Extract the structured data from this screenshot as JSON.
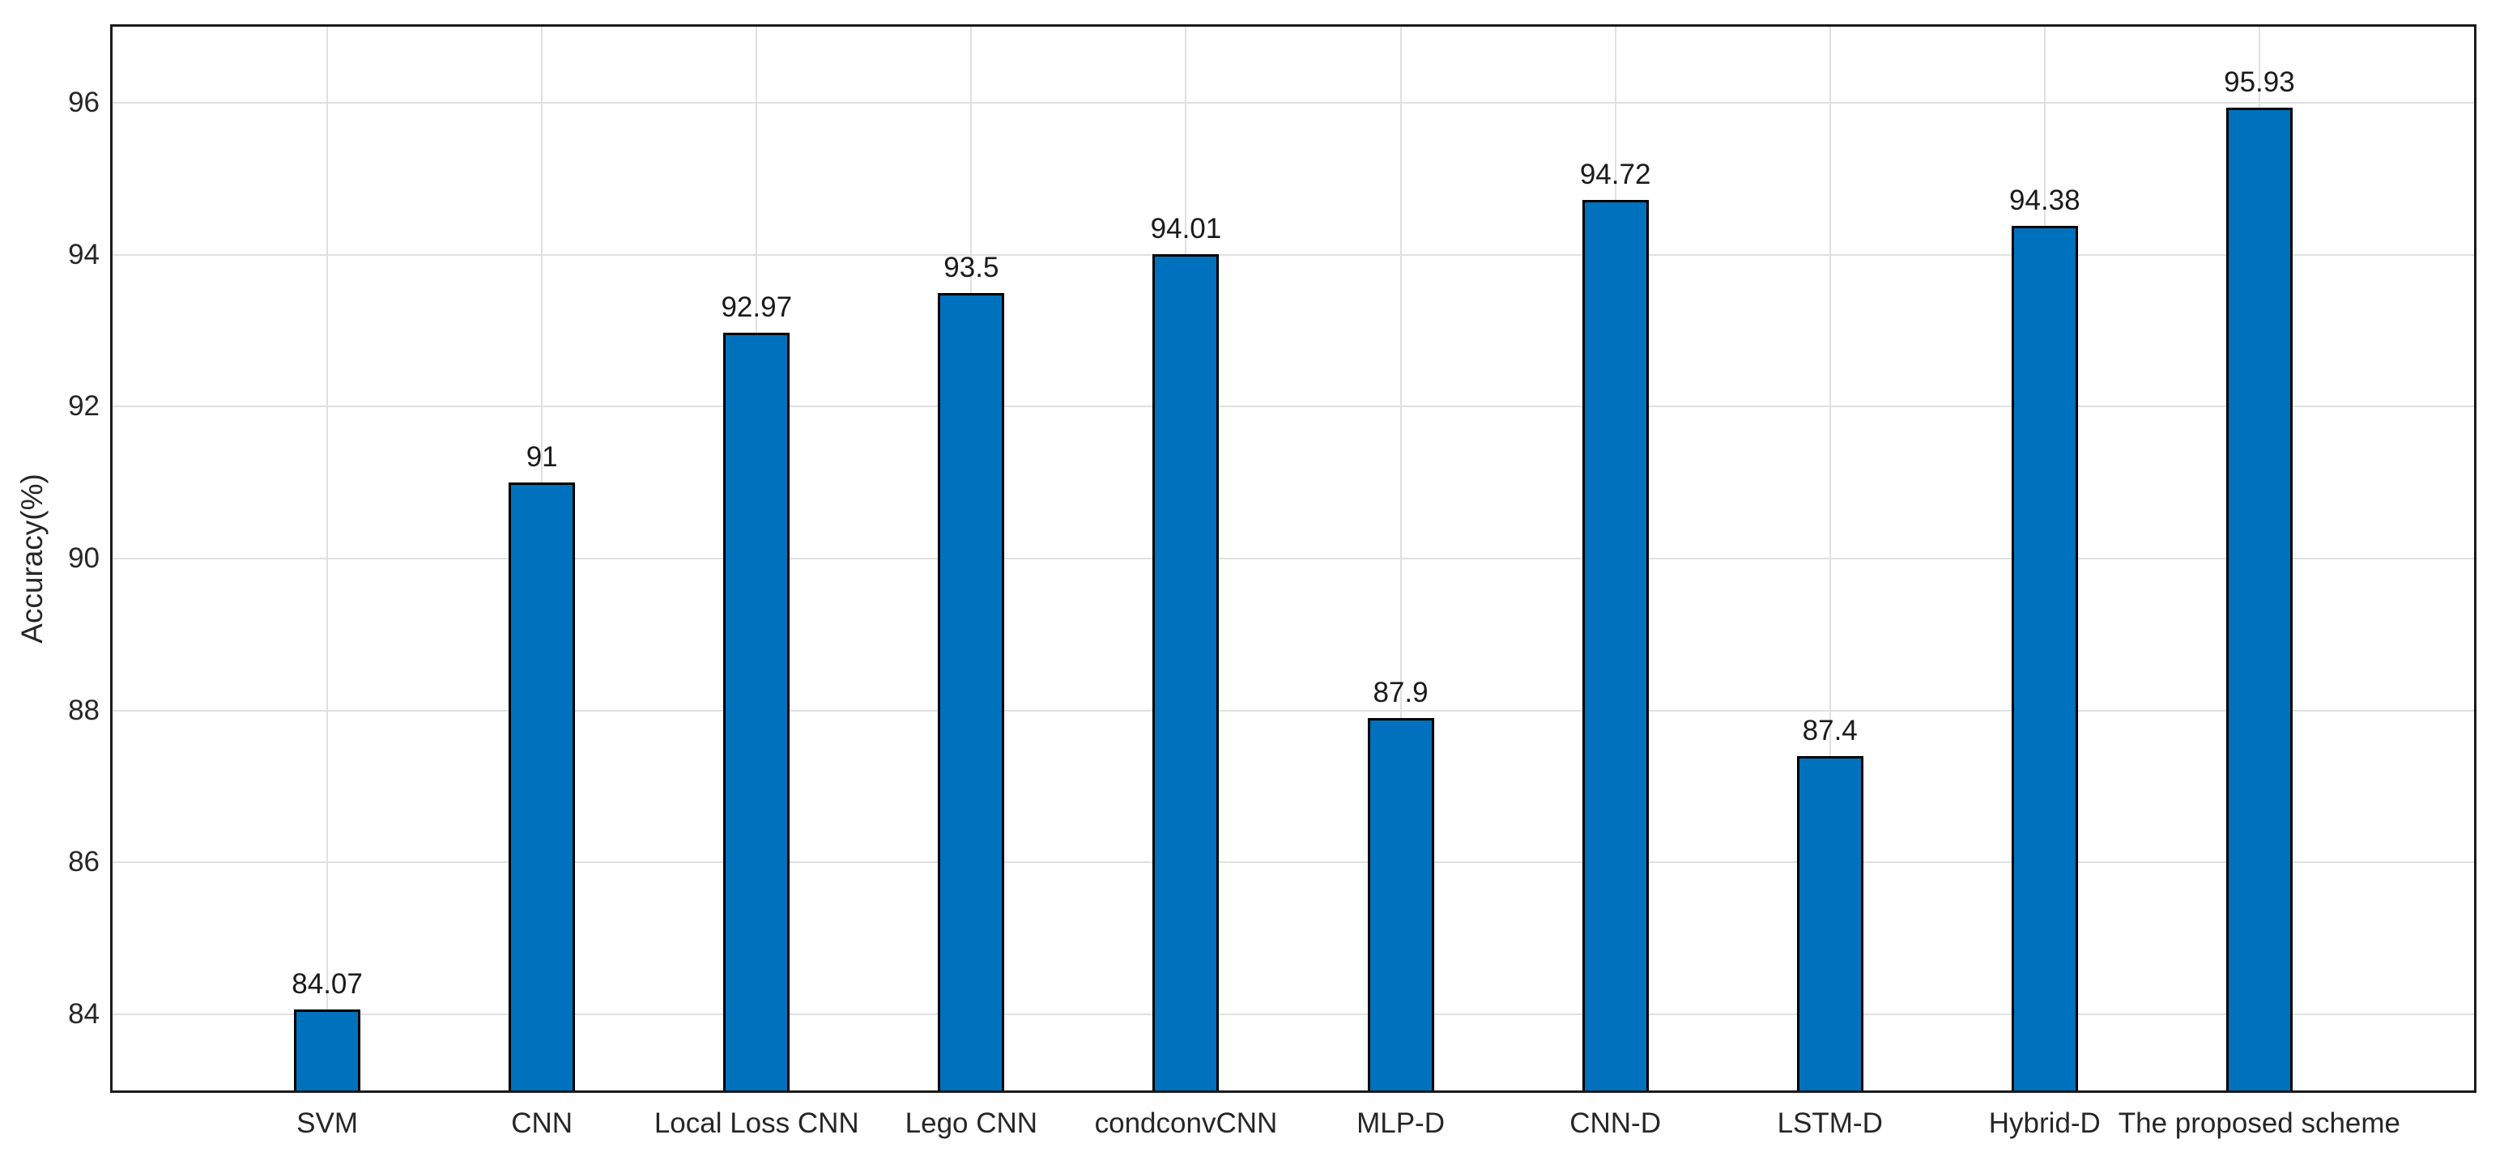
{
  "chart_data": {
    "type": "bar",
    "title": "",
    "xlabel": "",
    "ylabel": "Accuracy(%)",
    "categories": [
      "SVM",
      "CNN",
      "Local Loss CNN",
      "Lego CNN",
      "condconvCNN",
      "MLP-D",
      "CNN-D",
      "LSTM-D",
      "Hybrid-D",
      "The proposed scheme"
    ],
    "values": [
      84.07,
      91,
      92.97,
      93.5,
      94.01,
      87.9,
      94.72,
      87.4,
      94.38,
      95.93
    ],
    "value_labels": [
      "84.07",
      "91",
      "92.97",
      "93.5",
      "94.01",
      "87.9",
      "94.72",
      "87.4",
      "94.38",
      "95.93"
    ],
    "ylim": [
      83,
      97
    ],
    "yticks": [
      84,
      86,
      88,
      90,
      92,
      94,
      96
    ],
    "ytick_labels": [
      "84",
      "86",
      "88",
      "90",
      "92",
      "94",
      "96"
    ],
    "grid": true,
    "legend": null,
    "colors": {
      "bar_fill": "#0072BD",
      "bar_edge": "#000000",
      "grid": "#e0e0e0",
      "axis_box": "#1a1a1a",
      "text": "#262626",
      "background": "#ffffff"
    }
  }
}
